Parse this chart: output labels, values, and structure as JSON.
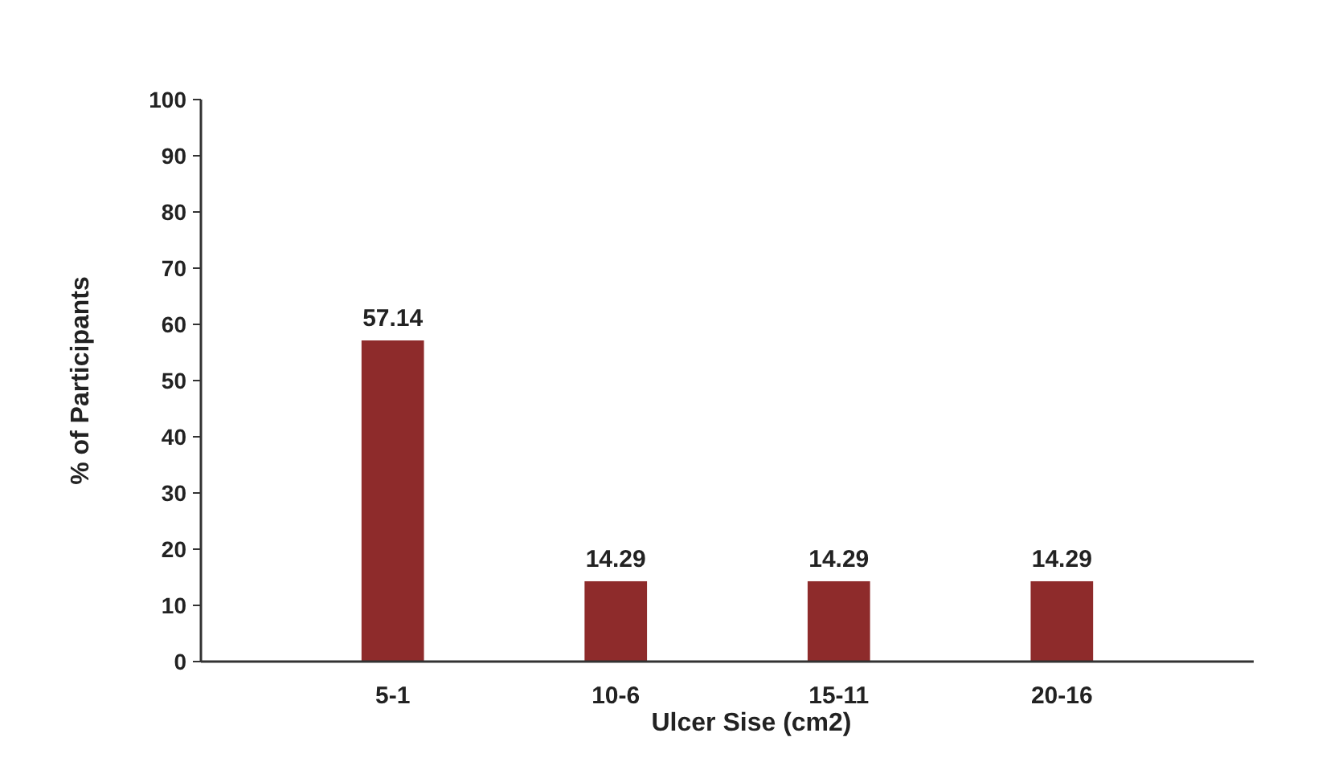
{
  "chart_data": {
    "type": "bar",
    "xlabel": "Ulcer Sise (cm2)",
    "ylabel": "% of Participants",
    "categories": [
      "5-1",
      "10-6",
      "15-11",
      "20-16"
    ],
    "values": [
      57.14,
      14.29,
      14.29,
      14.29
    ],
    "color": "#8e2b2b",
    "ylim": [
      0,
      100
    ],
    "yticks": [
      0,
      10,
      20,
      30,
      40,
      50,
      60,
      70,
      80,
      90,
      100
    ],
    "grid": false,
    "data_labels": true
  }
}
